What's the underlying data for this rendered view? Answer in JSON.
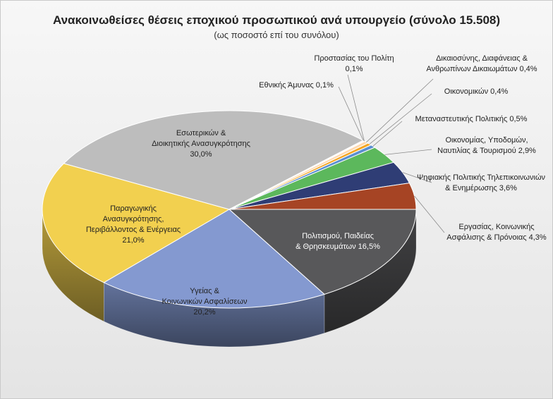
{
  "chart_data": {
    "type": "pie",
    "title": "Ανακοινωθείσες θέσεις εποχικού προσωπικού ανά υπουργείο (σύνολο 15.508)",
    "subtitle": "(ως ποσοστό επί του συνόλου)",
    "slices": [
      {
        "label": [
          "Πολιτισμού, Παιδείας",
          "& Θρησκευμάτων 16,5%"
        ],
        "value": 16.5,
        "color": "#58585a"
      },
      {
        "label": [
          "Υγείας &",
          "Κοινωνικών Ασφαλίσεων",
          "20,2%"
        ],
        "value": 20.2,
        "color": "#8499d0"
      },
      {
        "label": [
          "Παραγωγικής",
          "Ανασυγκρότησης,",
          "Περιβάλλοντος & Ενέργειας",
          "21,0%"
        ],
        "value": 21.0,
        "color": "#f2d04f"
      },
      {
        "label": [
          "Εσωτερικών  &",
          "Διοικητικής Ανασυγκρότησης",
          "30,0%"
        ],
        "value": 30.0,
        "color": "#bdbdbd"
      },
      {
        "label": [
          "Εθνικής Άμυνας 0,1%"
        ],
        "value": 0.1,
        "color": "#f0a0a0"
      },
      {
        "label": [
          "Προστασίας του Πολίτη",
          "0,1%"
        ],
        "value": 0.1,
        "color": "#9b4ea0"
      },
      {
        "label": [
          "Δικαιοσύνης, Διαφάνειας &",
          "Ανθρωπίνων  Δικαιωμάτων 0,4%"
        ],
        "value": 0.4,
        "color": "#ffd9b0"
      },
      {
        "label": [
          "Οικονομικών 0,4%"
        ],
        "value": 0.4,
        "color": "#f5a623"
      },
      {
        "label": [
          "Μεταναστευτικής Πολιτικής 0,5%"
        ],
        "value": 0.5,
        "color": "#5b8fd0"
      },
      {
        "label": [
          "Οικονομίας, Υποδομών,",
          "Ναυτιλίας & Τουρισμού 2,9%"
        ],
        "value": 2.9,
        "color": "#5cb85c"
      },
      {
        "label": [
          "Ψηφιακής Πολιτικής Τηλεπικοινωνιών",
          "& Ενημέρωσης  3,6%"
        ],
        "value": 3.6,
        "color": "#2f3d75"
      },
      {
        "label": [
          "Εργασίας, Κοινωνικής",
          "Ασφάλισης & Πρόνοιας 4,3%"
        ],
        "value": 4.3,
        "color": "#a64424"
      }
    ]
  }
}
